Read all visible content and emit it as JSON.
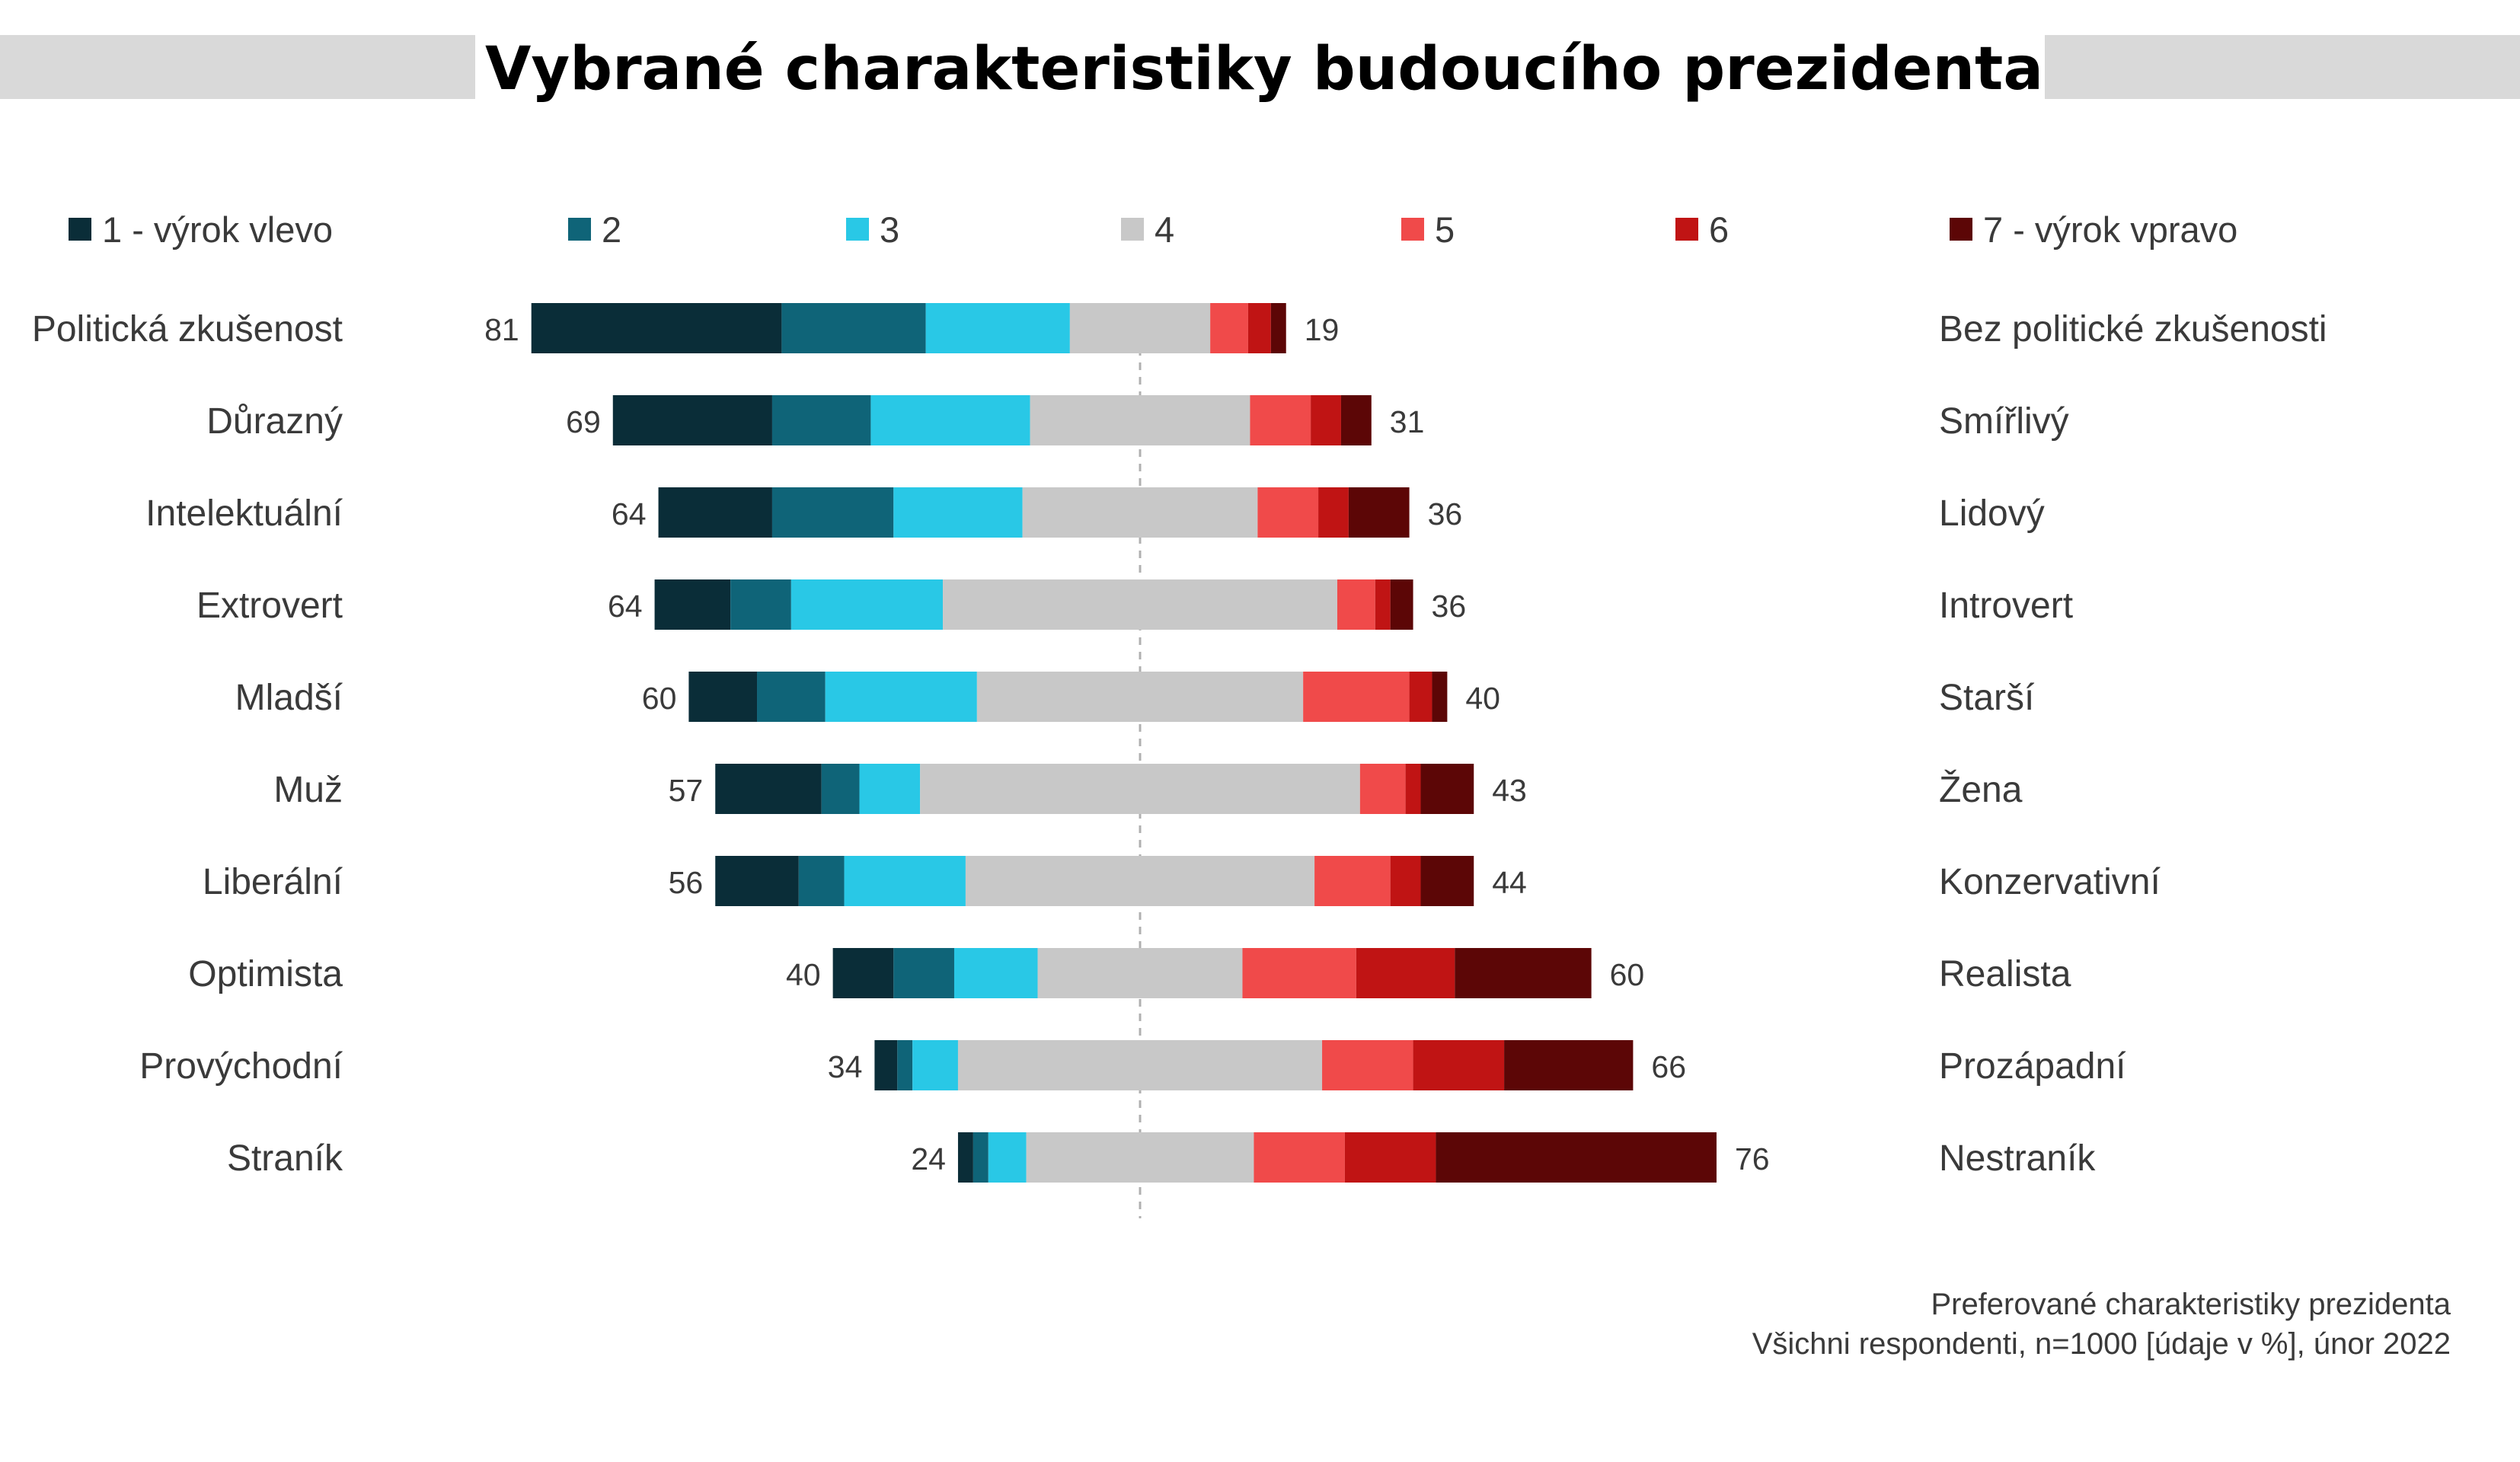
{
  "chart_data": {
    "type": "bar",
    "orientation": "horizontal",
    "stacked": true,
    "title": "Vybrané charakteristiky budoucího prezidenta",
    "legend_position": "top",
    "grid": false,
    "xlim": [
      0,
      100
    ],
    "series": [
      {
        "name": "1 - výrok vlevo",
        "color": "#0a2d38"
      },
      {
        "name": "2",
        "color": "#0f6478"
      },
      {
        "name": "3",
        "color": "#29c8e6"
      },
      {
        "name": "4",
        "color": "#c8c8c8"
      },
      {
        "name": "5",
        "color": "#f04a4a"
      },
      {
        "name": "6",
        "color": "#c01414"
      },
      {
        "name": "7 - výrok vpravo",
        "color": "#5c0606"
      }
    ],
    "rows": [
      {
        "left": "Politická zkušenost",
        "right": "Bez politické  zkušenosti",
        "left_total": "81",
        "right_total": "19",
        "values": [
          33,
          19,
          19,
          18.5,
          5,
          3,
          2
        ]
      },
      {
        "left": "Důrazný",
        "right": "Smířlivý",
        "left_total": "69",
        "right_total": "31",
        "values": [
          21,
          13,
          21,
          29,
          8,
          4,
          4
        ]
      },
      {
        "left": "Intelektuální",
        "right": "Lidový",
        "left_total": "64",
        "right_total": "36",
        "values": [
          15,
          16,
          17,
          31,
          8,
          4,
          8
        ]
      },
      {
        "left": "Extrovert",
        "right": "Introvert",
        "left_total": "64",
        "right_total": "36",
        "values": [
          10,
          8,
          20,
          52,
          5,
          2,
          3
        ]
      },
      {
        "left": "Mladší",
        "right": "Starší",
        "left_total": "60",
        "right_total": "40",
        "values": [
          9,
          9,
          20,
          43,
          14,
          3,
          2
        ]
      },
      {
        "left": "Muž",
        "right": "Žena",
        "left_total": "57",
        "right_total": "43",
        "values": [
          14,
          5,
          8,
          58,
          6,
          2,
          7
        ]
      },
      {
        "left": "Liberální",
        "right": "Konzervativní",
        "left_total": "56",
        "right_total": "44",
        "values": [
          11,
          6,
          16,
          46,
          10,
          4,
          7
        ]
      },
      {
        "left": "Optimista",
        "right": "Realista",
        "left_total": "40",
        "right_total": "60",
        "values": [
          8,
          8,
          11,
          27,
          15,
          13,
          18
        ]
      },
      {
        "left": "Provýchodní",
        "right": "Prozápadní",
        "left_total": "34",
        "right_total": "66",
        "values": [
          3,
          2,
          6,
          48,
          12,
          12,
          17
        ]
      },
      {
        "left": "Straník",
        "right": "Nestraník",
        "left_total": "24",
        "right_total": "76",
        "values": [
          2,
          2,
          5,
          30,
          12,
          12,
          37
        ]
      }
    ],
    "note_lines": [
      "Preferované charakteristiky prezidenta",
      "Všichni respondenti, n=1000 [údaje v %], únor 2022"
    ]
  }
}
